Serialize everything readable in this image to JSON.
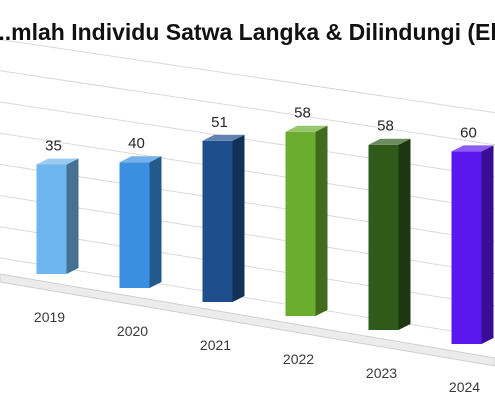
{
  "chart_data": {
    "type": "bar",
    "title": "...mlah Individu Satwa Langka & Dilindungi (Eko",
    "categories": [
      "2019",
      "2020",
      "2021",
      "2022",
      "2023",
      "2024"
    ],
    "values": [
      35,
      40,
      51,
      58,
      58,
      60
    ],
    "colors": [
      "#6fb6ee",
      "#3a8fe0",
      "#1f4e8c",
      "#6aad2f",
      "#2f5a19",
      "#5a18ee"
    ],
    "data_labels": [
      "35",
      "40",
      "51",
      "58",
      "58",
      "60"
    ],
    "style": "3d-perspective",
    "grid": true,
    "legend": "none"
  }
}
